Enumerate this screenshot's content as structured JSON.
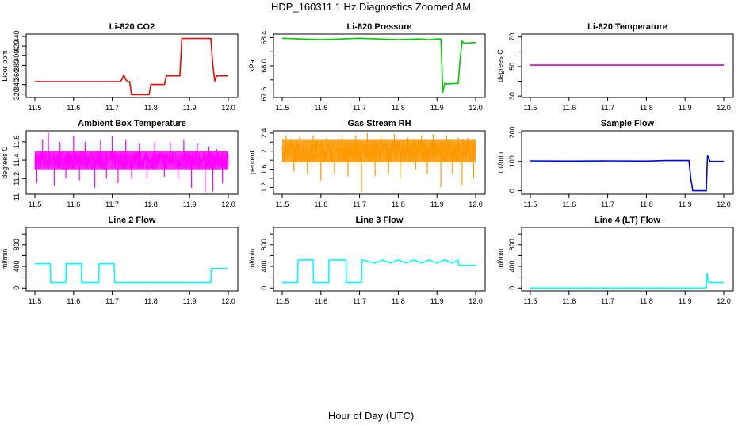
{
  "page": {
    "title": "HDP_160311  1 Hz Diagnostics Zoomed AM",
    "xlabel": "Hour of Day (UTC)"
  },
  "chart_data": [
    {
      "type": "line",
      "title": "Li-820 CO2",
      "ylabel": "Licor ppm",
      "color": "#ff0000",
      "xlim": [
        11.5,
        12.0
      ],
      "ylim": [
        313,
        445
      ],
      "xticks": [
        "11.5",
        "11.6",
        "11.7",
        "11.8",
        "11.9",
        "12.0"
      ],
      "yticks": [
        320,
        340,
        360,
        380,
        400,
        420,
        440
      ],
      "series": [
        {
          "x": [
            11.5,
            11.72,
            11.725,
            11.73,
            11.735,
            11.74,
            11.745,
            11.75,
            11.795,
            11.8,
            11.835,
            11.84,
            11.875,
            11.88,
            11.955,
            11.96,
            11.965,
            11.97,
            12.0
          ],
          "y": [
            346,
            346,
            350,
            360,
            350,
            346,
            346,
            319,
            319,
            340,
            340,
            358,
            358,
            436,
            436,
            380,
            348,
            358,
            358
          ]
        }
      ]
    },
    {
      "type": "line",
      "title": "Li-820 Pressure",
      "ylabel": "kPa",
      "color": "#00cc00",
      "xlim": [
        11.5,
        12.0
      ],
      "ylim": [
        67.55,
        68.45
      ],
      "xticks": [
        "11.5",
        "11.6",
        "11.7",
        "11.8",
        "11.9",
        "12.0"
      ],
      "yticks": [
        67.6,
        67.8,
        68.0,
        68.2,
        68.4
      ],
      "yticklabels": [
        "67.6",
        "",
        "68.0",
        "",
        "68.4"
      ],
      "series": [
        {
          "x": [
            11.5,
            11.55,
            11.6,
            11.65,
            11.7,
            11.75,
            11.8,
            11.85,
            11.88,
            11.9,
            11.91,
            11.913,
            11.915,
            11.92,
            11.925,
            11.955,
            11.96,
            11.965,
            11.97,
            12.0
          ],
          "y": [
            68.39,
            68.38,
            68.37,
            68.38,
            68.39,
            68.38,
            68.37,
            68.38,
            68.37,
            68.38,
            68.38,
            68.0,
            67.62,
            67.75,
            67.74,
            67.75,
            68.1,
            68.35,
            68.32,
            68.33
          ]
        }
      ]
    },
    {
      "type": "line",
      "title": "Li-820 Temperature",
      "ylabel": "degrees C",
      "color": "#cc00cc",
      "xlim": [
        11.5,
        12.0
      ],
      "ylim": [
        29,
        72
      ],
      "xticks": [
        "11.5",
        "11.6",
        "11.7",
        "11.8",
        "11.9",
        "12.0"
      ],
      "yticks": [
        30,
        40,
        50,
        60,
        70
      ],
      "yticklabels": [
        "30",
        "",
        "50",
        "",
        "70"
      ],
      "series": [
        {
          "x": [
            11.5,
            12.0
          ],
          "y": [
            51,
            51
          ]
        }
      ]
    },
    {
      "type": "line",
      "title": "Ambient Box Temperature",
      "ylabel": "degrees C",
      "color": "#ff00ff",
      "xlim": [
        11.5,
        12.0
      ],
      "ylim": [
        11.03,
        11.72
      ],
      "xticks": [
        "11.5",
        "11.6",
        "11.7",
        "11.8",
        "11.9",
        "12.0"
      ],
      "yticks": [
        11.0,
        11.2,
        11.4,
        11.6
      ],
      "band": [
        11.3,
        11.5
      ],
      "spikes": [
        [
          11.505,
          11.15
        ],
        [
          11.52,
          11.62
        ],
        [
          11.535,
          11.7
        ],
        [
          11.55,
          11.12
        ],
        [
          11.565,
          11.6
        ],
        [
          11.58,
          11.2
        ],
        [
          11.6,
          11.66
        ],
        [
          11.615,
          11.18
        ],
        [
          11.63,
          11.6
        ],
        [
          11.655,
          11.1
        ],
        [
          11.67,
          11.62
        ],
        [
          11.685,
          11.2
        ],
        [
          11.7,
          11.66
        ],
        [
          11.715,
          11.15
        ],
        [
          11.735,
          11.62
        ],
        [
          11.75,
          11.2
        ],
        [
          11.77,
          11.58
        ],
        [
          11.79,
          11.2
        ],
        [
          11.81,
          11.6
        ],
        [
          11.835,
          11.22
        ],
        [
          11.85,
          11.6
        ],
        [
          11.87,
          11.2
        ],
        [
          11.885,
          11.62
        ],
        [
          11.905,
          11.1
        ],
        [
          11.92,
          11.58
        ],
        [
          11.94,
          11.05
        ],
        [
          11.95,
          11.55
        ],
        [
          11.96,
          11.06
        ],
        [
          11.97,
          11.52
        ],
        [
          11.985,
          11.15
        ]
      ]
    },
    {
      "type": "line",
      "title": "Gas Stream RH",
      "ylabel": "percent",
      "color": "#ff9900",
      "xlim": [
        11.5,
        12.0
      ],
      "ylim": [
        1.05,
        2.45
      ],
      "xticks": [
        "11.5",
        "11.6",
        "11.7",
        "11.8",
        "11.9",
        "12.0"
      ],
      "yticks": [
        1.2,
        1.6,
        2.0,
        2.4
      ],
      "yticks_minor": [
        1.4,
        1.8,
        2.2
      ],
      "band": [
        1.75,
        2.25
      ],
      "spikes": [
        [
          11.51,
          2.35
        ],
        [
          11.53,
          1.55
        ],
        [
          11.545,
          2.32
        ],
        [
          11.565,
          1.5
        ],
        [
          11.58,
          2.35
        ],
        [
          11.6,
          1.35
        ],
        [
          11.615,
          2.3
        ],
        [
          11.635,
          1.5
        ],
        [
          11.655,
          2.35
        ],
        [
          11.67,
          1.45
        ],
        [
          11.69,
          2.35
        ],
        [
          11.705,
          1.1
        ],
        [
          11.72,
          2.4
        ],
        [
          11.74,
          1.45
        ],
        [
          11.755,
          2.35
        ],
        [
          11.775,
          1.5
        ],
        [
          11.79,
          2.38
        ],
        [
          11.805,
          1.4
        ],
        [
          11.825,
          2.3
        ],
        [
          11.845,
          1.6
        ],
        [
          11.86,
          2.35
        ],
        [
          11.875,
          1.5
        ],
        [
          11.89,
          2.38
        ],
        [
          11.91,
          1.2
        ],
        [
          11.925,
          2.35
        ],
        [
          11.94,
          1.5
        ],
        [
          11.955,
          2.3
        ],
        [
          11.965,
          1.25
        ],
        [
          11.98,
          2.3
        ],
        [
          11.995,
          1.4
        ]
      ]
    },
    {
      "type": "line",
      "title": "Sample Flow",
      "ylabel": "ml/min",
      "color": "#0000ff",
      "xlim": [
        11.5,
        12.0
      ],
      "ylim": [
        -12,
        205
      ],
      "xticks": [
        "11.5",
        "11.6",
        "11.7",
        "11.8",
        "11.9",
        "12.0"
      ],
      "yticks": [
        0,
        100,
        200
      ],
      "series": [
        {
          "x": [
            11.5,
            11.6,
            11.7,
            11.8,
            11.85,
            11.91,
            11.915,
            11.92,
            11.955,
            11.958,
            11.962,
            11.965,
            11.97,
            12.0
          ],
          "y": [
            102,
            101,
            102,
            101,
            103,
            103,
            40,
            0,
            0,
            120,
            108,
            100,
            100,
            100
          ]
        }
      ]
    },
    {
      "type": "line",
      "title": "Line 2 Flow",
      "ylabel": "ml/min",
      "color": "#00ffff",
      "xlim": [
        11.5,
        12.0
      ],
      "ylim": [
        -55,
        1120
      ],
      "xticks": [
        "11.5",
        "11.6",
        "11.7",
        "11.8",
        "11.9",
        "12.0"
      ],
      "yticks": [
        0,
        400,
        800
      ],
      "yticks_minor": [
        200,
        600,
        1000
      ],
      "series": [
        {
          "x": [
            11.5,
            11.54,
            11.541,
            11.58,
            11.581,
            11.62,
            11.621,
            11.665,
            11.666,
            11.705,
            11.706,
            11.955,
            11.956,
            12.0
          ],
          "y": [
            450,
            450,
            100,
            100,
            450,
            450,
            100,
            100,
            450,
            450,
            100,
            100,
            360,
            360
          ]
        }
      ]
    },
    {
      "type": "line",
      "title": "Line 3 Flow",
      "ylabel": "ml/min",
      "color": "#00ffff",
      "xlim": [
        11.5,
        12.0
      ],
      "ylim": [
        -55,
        1120
      ],
      "xticks": [
        "11.5",
        "11.6",
        "11.7",
        "11.8",
        "11.9",
        "12.0"
      ],
      "yticks": [
        0,
        400,
        800
      ],
      "yticks_minor": [
        200,
        600,
        1000
      ],
      "series": [
        {
          "x": [
            11.5,
            11.54,
            11.541,
            11.58,
            11.581,
            11.62,
            11.621,
            11.665,
            11.666,
            11.705,
            11.706,
            11.74,
            11.76,
            11.78,
            11.8,
            11.82,
            11.84,
            11.86,
            11.88,
            11.9,
            11.92,
            11.94,
            11.955,
            11.956,
            12.0
          ],
          "y": [
            100,
            100,
            520,
            520,
            100,
            100,
            520,
            520,
            100,
            100,
            520,
            460,
            520,
            460,
            520,
            460,
            520,
            460,
            520,
            460,
            520,
            460,
            520,
            420,
            420
          ]
        }
      ]
    },
    {
      "type": "line",
      "title": "Line 4 (LT) Flow",
      "ylabel": "ml/min",
      "color": "#00ffff",
      "xlim": [
        11.5,
        12.0
      ],
      "ylim": [
        -55,
        1120
      ],
      "xticks": [
        "11.5",
        "11.6",
        "11.7",
        "11.8",
        "11.9",
        "12.0"
      ],
      "yticks": [
        0,
        400,
        800
      ],
      "yticks_minor": [
        200,
        600,
        1000
      ],
      "series": [
        {
          "x": [
            11.5,
            11.95,
            11.955,
            11.957,
            11.96,
            11.965,
            12.0
          ],
          "y": [
            0,
            0,
            10,
            280,
            120,
            100,
            100
          ]
        }
      ]
    }
  ]
}
